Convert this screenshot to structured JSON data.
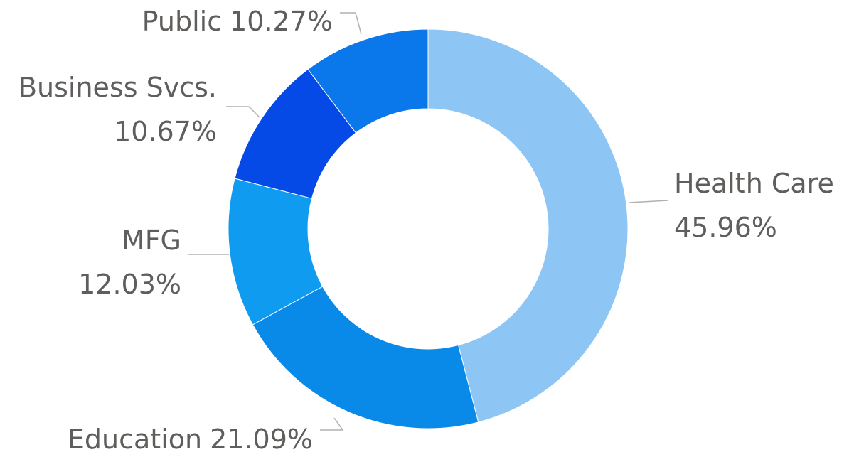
{
  "chart_data": {
    "type": "donut",
    "categories": [
      "Health Care",
      "Education",
      "MFG",
      "Business Svcs.",
      "Public"
    ],
    "values": [
      45.96,
      21.09,
      12.03,
      10.67,
      10.27
    ],
    "value_labels": [
      "45.96%",
      "21.09%",
      "12.03%",
      "10.67%",
      "10.27%"
    ],
    "colors": [
      "#8dc5f5",
      "#0a8ae8",
      "#0e9bf0",
      "#0549e6",
      "#0a78ea"
    ]
  }
}
